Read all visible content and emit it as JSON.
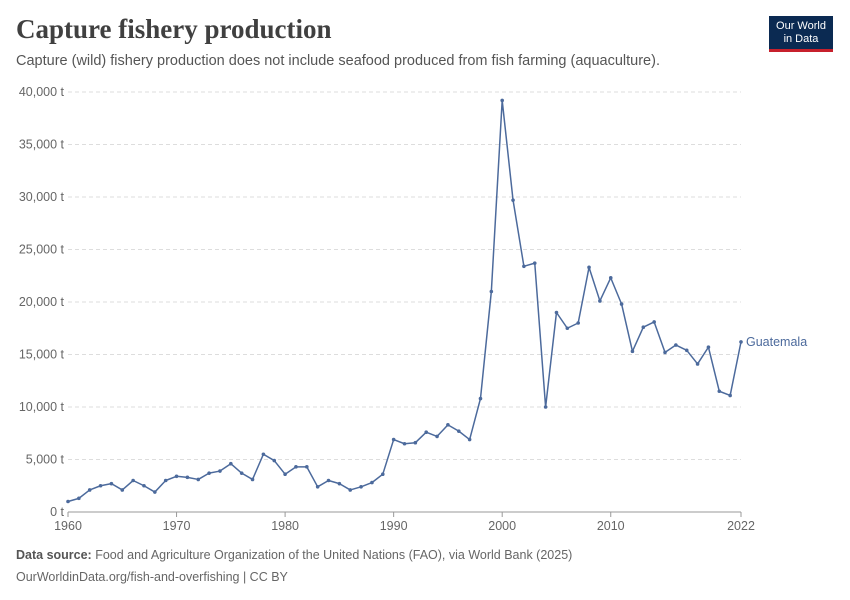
{
  "header": {
    "title": "Capture fishery production",
    "subtitle": "Capture (wild) fishery production does not include seafood produced from fish farming (aquaculture).",
    "logo_line1": "Our World",
    "logo_line2": "in Data"
  },
  "footer": {
    "source_label": "Data source:",
    "source_text": "Food and Agriculture Organization of the United Nations (FAO), via World Bank (2025)",
    "link_text": "OurWorldinData.org/fish-and-overfishing | CC BY"
  },
  "colors": {
    "series": "#4c6a9c",
    "grid": "#dddddd",
    "axis": "#999999",
    "logo_bg": "#0b2a52",
    "logo_accent": "#c7202c"
  },
  "chart_data": {
    "type": "line",
    "title": "Capture fishery production",
    "xlabel": "",
    "ylabel": "",
    "xlim": [
      1960,
      2022
    ],
    "ylim": [
      0,
      40000
    ],
    "y_unit_suffix": " t",
    "x_ticks": [
      1960,
      1970,
      1980,
      1990,
      2000,
      2010,
      2022
    ],
    "y_ticks": [
      0,
      5000,
      10000,
      15000,
      20000,
      25000,
      30000,
      35000,
      40000
    ],
    "y_tick_labels": [
      "0 t",
      "5,000 t",
      "10,000 t",
      "15,000 t",
      "20,000 t",
      "25,000 t",
      "30,000 t",
      "35,000 t",
      "40,000 t"
    ],
    "grid": "horizontal dashed",
    "legend": "inline label at end of line",
    "series": [
      {
        "name": "Guatemala",
        "color": "#4c6a9c",
        "x": [
          1960,
          1961,
          1962,
          1963,
          1964,
          1965,
          1966,
          1967,
          1968,
          1969,
          1970,
          1971,
          1972,
          1973,
          1974,
          1975,
          1976,
          1977,
          1978,
          1979,
          1980,
          1981,
          1982,
          1983,
          1984,
          1985,
          1986,
          1987,
          1988,
          1989,
          1990,
          1991,
          1992,
          1993,
          1994,
          1995,
          1996,
          1997,
          1998,
          1999,
          2000,
          2001,
          2002,
          2003,
          2004,
          2005,
          2006,
          2007,
          2008,
          2009,
          2010,
          2011,
          2012,
          2013,
          2014,
          2015,
          2016,
          2017,
          2018,
          2019,
          2020,
          2021,
          2022
        ],
        "values": [
          1000,
          1300,
          2100,
          2500,
          2700,
          2100,
          3000,
          2500,
          1900,
          3000,
          3400,
          3300,
          3100,
          3700,
          3900,
          4600,
          3700,
          3100,
          5500,
          4900,
          3600,
          4300,
          4300,
          2400,
          3000,
          2700,
          2100,
          2400,
          2800,
          3600,
          6900,
          6500,
          6600,
          7600,
          7200,
          8300,
          7700,
          6900,
          10800,
          21000,
          39200,
          29700,
          23400,
          23700,
          10000,
          19000,
          17500,
          18000,
          23300,
          20100,
          22300,
          19800,
          15300,
          17600,
          18100,
          15200,
          15900,
          15400,
          14100,
          15700,
          11500,
          11100,
          16200
        ]
      }
    ]
  }
}
